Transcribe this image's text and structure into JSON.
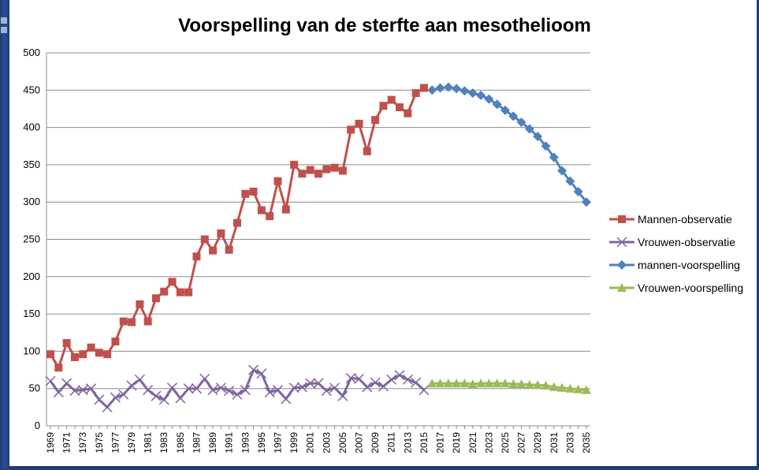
{
  "colors": {
    "men_obs": "#c0504d",
    "women_obs": "#8064a2",
    "men_forecast": "#4f81bd",
    "women_forecast": "#9bbb59"
  },
  "chart_data": {
    "type": "line",
    "title": "Voorspelling van de sterfte aan mesothelioom",
    "xlabel": "",
    "ylabel": "",
    "ylim": [
      0,
      500
    ],
    "yticks": [
      0,
      50,
      100,
      150,
      200,
      250,
      300,
      350,
      400,
      450,
      500
    ],
    "xlim": [
      1969,
      2035
    ],
    "xticks": [
      1969,
      1971,
      1973,
      1975,
      1977,
      1979,
      1981,
      1983,
      1985,
      1987,
      1989,
      1991,
      1993,
      1995,
      1997,
      1999,
      2001,
      2003,
      2005,
      2007,
      2009,
      2011,
      2013,
      2015,
      2017,
      2019,
      2021,
      2023,
      2025,
      2027,
      2029,
      2031,
      2033,
      2035
    ],
    "grid": true,
    "legend_position": "right",
    "series": [
      {
        "name": "Mannen-observatie",
        "marker": "square",
        "color": "#c0504d",
        "x": [
          1969,
          1970,
          1971,
          1972,
          1973,
          1974,
          1975,
          1976,
          1977,
          1978,
          1979,
          1980,
          1981,
          1982,
          1983,
          1984,
          1985,
          1986,
          1987,
          1988,
          1989,
          1990,
          1991,
          1992,
          1993,
          1994,
          1995,
          1996,
          1997,
          1998,
          1999,
          2000,
          2001,
          2002,
          2003,
          2004,
          2005,
          2006,
          2007,
          2008,
          2009,
          2010,
          2011,
          2012,
          2013,
          2014,
          2015
        ],
        "values": [
          96,
          78,
          111,
          92,
          96,
          105,
          98,
          96,
          113,
          140,
          139,
          163,
          140,
          171,
          180,
          193,
          179,
          179,
          227,
          250,
          235,
          258,
          236,
          272,
          311,
          314,
          289,
          281,
          328,
          290,
          350,
          338,
          343,
          338,
          344,
          346,
          342,
          397,
          405,
          368,
          410,
          429,
          437,
          427,
          419,
          446,
          453
        ]
      },
      {
        "name": "Vrouwen-observatie",
        "marker": "cross",
        "color": "#8064a2",
        "x": [
          1969,
          1970,
          1971,
          1972,
          1973,
          1974,
          1975,
          1976,
          1977,
          1978,
          1979,
          1980,
          1981,
          1982,
          1983,
          1984,
          1985,
          1986,
          1987,
          1988,
          1989,
          1990,
          1991,
          1992,
          1993,
          1994,
          1995,
          1996,
          1997,
          1998,
          1999,
          2000,
          2001,
          2002,
          2003,
          2004,
          2005,
          2006,
          2007,
          2008,
          2009,
          2010,
          2011,
          2012,
          2013,
          2014,
          2015
        ],
        "values": [
          60,
          45,
          57,
          47,
          48,
          50,
          35,
          25,
          38,
          42,
          54,
          62,
          48,
          40,
          35,
          51,
          37,
          50,
          50,
          63,
          48,
          51,
          47,
          42,
          48,
          75,
          70,
          45,
          48,
          36,
          51,
          52,
          57,
          57,
          47,
          51,
          40,
          64,
          63,
          52,
          58,
          53,
          62,
          68,
          62,
          58,
          48
        ]
      },
      {
        "name": "mannen-voorspelling",
        "marker": "diamond",
        "color": "#4f81bd",
        "x": [
          2016,
          2017,
          2018,
          2019,
          2020,
          2021,
          2022,
          2023,
          2024,
          2025,
          2026,
          2027,
          2028,
          2029,
          2030,
          2031,
          2032,
          2033,
          2034,
          2035
        ],
        "values": [
          450,
          453,
          454,
          452,
          449,
          446,
          443,
          438,
          431,
          423,
          415,
          407,
          398,
          388,
          375,
          360,
          342,
          328,
          314,
          300
        ]
      },
      {
        "name": "Vrouwen-voorspelling",
        "marker": "triangle",
        "color": "#9bbb59",
        "x": [
          2016,
          2017,
          2018,
          2019,
          2020,
          2021,
          2022,
          2023,
          2024,
          2025,
          2026,
          2027,
          2028,
          2029,
          2030,
          2031,
          2032,
          2033,
          2034,
          2035
        ],
        "values": [
          57,
          57,
          57,
          57,
          57,
          56,
          57,
          57,
          57,
          57,
          56,
          56,
          55,
          55,
          54,
          52,
          51,
          50,
          49,
          48
        ]
      }
    ]
  }
}
